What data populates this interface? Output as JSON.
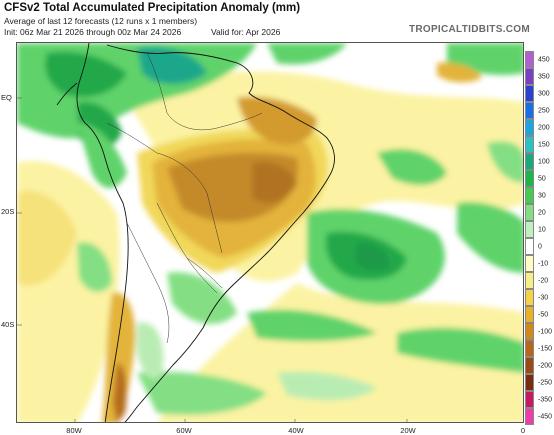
{
  "header": {
    "title": "CFSv2 Total Accumulated Precipitation Anomaly (mm)",
    "subtitle": "Average of last 12 forecasts (12 runs x 1 members)",
    "init": "Init: 06z Mar 21 2026 through 00z Mar 24 2026",
    "valid": "Valid for: Apr 2026",
    "brand": "TROPICALTIDBITS.COM"
  },
  "axes": {
    "lat_labels": [
      "EQ",
      "20S",
      "40S"
    ],
    "lon_labels": [
      "80W",
      "60W",
      "40W",
      "20W",
      "0"
    ]
  },
  "colorbar": {
    "labels": [
      "450",
      "350",
      "300",
      "250",
      "200",
      "150",
      "100",
      "50",
      "30",
      "20",
      "10",
      "0",
      "-10",
      "-20",
      "-30",
      "-50",
      "-100",
      "-150",
      "-200",
      "-250",
      "-350",
      "-450"
    ],
    "colors": [
      "#b25fd6",
      "#7b3fc7",
      "#2b3fd0",
      "#1b6ee5",
      "#1ea5dc",
      "#2cc2c2",
      "#1aa97a",
      "#1bb54a",
      "#44cc52",
      "#84df84",
      "#c0f0c0",
      "#ffffff",
      "#fffbc4",
      "#f6ee88",
      "#f2d34a",
      "#e8b12a",
      "#d18a1a",
      "#b8661a",
      "#9a4a14",
      "#7a2c0e",
      "#c8185e",
      "#f03caa"
    ]
  },
  "map": {
    "colors": {
      "ocean_neutral": "#ffffff",
      "light_yellow": "#fbf3a3",
      "yellow": "#f1d85a",
      "orange": "#e3b33b",
      "brown": "#c48a2a",
      "dark_brown": "#8b4d14",
      "light_green": "#b9ecb3",
      "green": "#5fd36a",
      "dark_green": "#22a84a",
      "teal": "#1fa78a",
      "coast": "#111111"
    }
  }
}
